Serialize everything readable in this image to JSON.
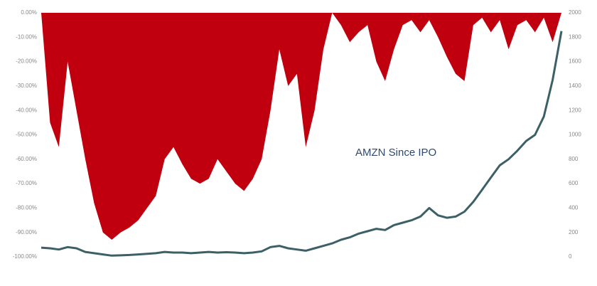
{
  "chart_data": {
    "type": "drawdown-price",
    "annotation": "AMZN Since IPO",
    "ylim": [
      -100,
      0
    ],
    "yticks": [
      {
        "value": 0,
        "label": "0.00%"
      },
      {
        "value": -10,
        "label": "-10.00%"
      },
      {
        "value": -20,
        "label": "-20.00%"
      },
      {
        "value": -30,
        "label": "-30.00%"
      },
      {
        "value": -40,
        "label": "-40.00%"
      },
      {
        "value": -50,
        "label": "-50.00%"
      },
      {
        "value": -60,
        "label": "-60.00%"
      },
      {
        "value": -70,
        "label": "-70.00%"
      },
      {
        "value": -80,
        "label": "-80.00%"
      },
      {
        "value": -90,
        "label": "-90.00%"
      },
      {
        "value": -100,
        "label": "-100.00%"
      }
    ],
    "y2lim": [
      0,
      2000
    ],
    "y2ticks": [
      0,
      200,
      400,
      600,
      800,
      1000,
      1200,
      1400,
      1600,
      1800,
      2000
    ],
    "series": [
      {
        "color": "#c0000f",
        "style": "area",
        "values": [
          0,
          -45,
          -55,
          -20,
          -40,
          -60,
          -78,
          -90,
          -93,
          -90,
          -88,
          -85,
          -80,
          -75,
          -60,
          -55,
          -62,
          -68,
          -70,
          -68,
          -60,
          -65,
          -70,
          -73,
          -68,
          -60,
          -40,
          -15,
          -30,
          -25,
          -55,
          -40,
          -15,
          0,
          -5,
          -12,
          -8,
          -5,
          -20,
          -28,
          -15,
          -5,
          -3,
          -8,
          -3,
          -10,
          -18,
          -25,
          -28,
          -5,
          -2,
          -8,
          -3,
          -15,
          -5,
          -3,
          -8,
          -2,
          -12,
          0
        ]
      },
      {
        "color": "#3d6066",
        "style": "line",
        "axis": "y2",
        "values": [
          75,
          70,
          60,
          80,
          70,
          40,
          30,
          20,
          10,
          12,
          15,
          20,
          25,
          30,
          40,
          35,
          35,
          30,
          35,
          40,
          35,
          38,
          35,
          30,
          35,
          45,
          80,
          90,
          70,
          60,
          50,
          70,
          90,
          110,
          140,
          160,
          190,
          210,
          230,
          220,
          260,
          280,
          300,
          330,
          400,
          340,
          320,
          330,
          370,
          450,
          550,
          650,
          750,
          800,
          870,
          950,
          1000,
          1150,
          1450,
          1850
        ]
      }
    ]
  }
}
